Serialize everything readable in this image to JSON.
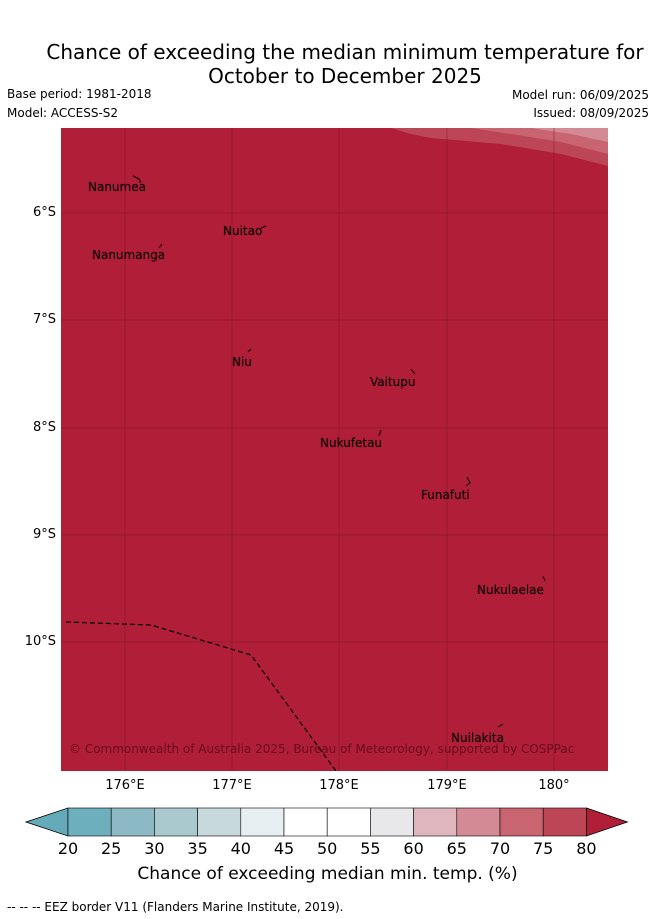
{
  "title_line1": "Chance of exceeding the median minimum temperature for",
  "title_line2": "October to December 2025",
  "base_period": "Base period: 1981-2018",
  "model": "Model: ACCESS-S2",
  "model_run": "Model run: 06/09/2025",
  "issued": "Issued: 08/09/2025",
  "map": {
    "fill_color": "#b01e37",
    "lat_labels": [
      "6°S",
      "7°S",
      "8°S",
      "9°S",
      "10°S"
    ],
    "lon_labels": [
      "176°E",
      "177°E",
      "178°E",
      "179°E",
      "180°"
    ],
    "places": [
      {
        "name": "Nanumea"
      },
      {
        "name": "Nuitao"
      },
      {
        "name": "Nanumanga"
      },
      {
        "name": "Niu"
      },
      {
        "name": "Vaitupu"
      },
      {
        "name": "Nukufetau"
      },
      {
        "name": "Funafuti"
      },
      {
        "name": "Nukulaelae"
      },
      {
        "name": "Nuilakita"
      }
    ],
    "copyright": "© Commonwealth of Australia 2025, Bureau of Meteorology, supported by COSPPac"
  },
  "colorbar": {
    "ticks": [
      "20",
      "25",
      "30",
      "35",
      "40",
      "45",
      "50",
      "55",
      "60",
      "65",
      "70",
      "75",
      "80"
    ],
    "colors": [
      "#64aab8",
      "#6dafbc",
      "#8db9c5",
      "#aac9cf",
      "#c8d9de",
      "#e8eff2",
      "#ffffff",
      "#ffffff",
      "#e8e8ea",
      "#dfb6bd",
      "#d48a94",
      "#c96571",
      "#bd4656",
      "#b01e37"
    ],
    "label": "Chance of exceeding median min. temp. (%)"
  },
  "footnote": "--  --  -- EEZ border V11 (Flanders Marine Institute, 2019)."
}
